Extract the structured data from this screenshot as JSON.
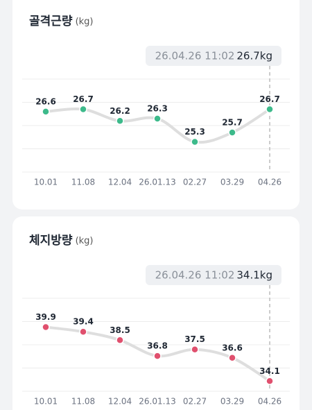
{
  "chart_data": [
    {
      "type": "line",
      "title": "골격근량",
      "unit": "(kg)",
      "tooltip_time": "26.04.26 11:02",
      "tooltip_value": "26.7kg",
      "categories": [
        "10.01",
        "11.08",
        "12.04",
        "26.01.13",
        "02.27",
        "03.29",
        "04.26"
      ],
      "values": [
        26.6,
        26.7,
        26.2,
        26.3,
        25.3,
        25.7,
        26.7
      ],
      "color": "#3dba8b",
      "ylim": [
        24,
        28
      ]
    },
    {
      "type": "line",
      "title": "체지방량",
      "unit": "(kg)",
      "tooltip_time": "26.04.26 11:02",
      "tooltip_value": "34.1kg",
      "categories": [
        "10.01",
        "11.08",
        "12.04",
        "26.01.13",
        "02.27",
        "03.29",
        "04.26"
      ],
      "values": [
        39.9,
        39.4,
        38.5,
        36.8,
        37.5,
        36.6,
        34.1
      ],
      "color": "#e0506e",
      "ylim": [
        33,
        43
      ]
    }
  ]
}
